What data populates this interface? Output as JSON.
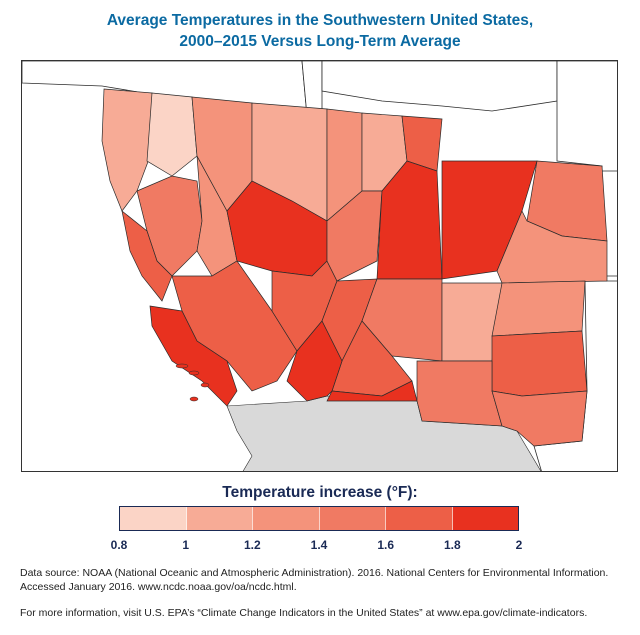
{
  "title": {
    "line1": "Average Temperatures in the Southwestern United States,",
    "line2": "2000–2015 Versus Long-Term Average"
  },
  "legend": {
    "title": "Temperature increase (°F):",
    "ticks": [
      "0.8",
      "1",
      "1.2",
      "1.4",
      "1.6",
      "1.8",
      "2"
    ],
    "colors": [
      "#fbd4c6",
      "#f7ab96",
      "#f4937b",
      "#f07a63",
      "#ed5f47",
      "#e8311f"
    ]
  },
  "colors": {
    "outside_states": "#ffffff",
    "mexico": "#d9d9d9",
    "ocean": "#ffffff",
    "border": "#2b2b2b"
  },
  "source": {
    "line1": "Data source: NOAA (National Oceanic and Atmospheric Administration). 2016. National Centers for Environmental Information.",
    "line2": "Accessed January 2016. www.ncdc.noaa.gov/oa/ncdc.html."
  },
  "more_info": "For more information, visit U.S. EPA’s “Climate Change Indicators in the United States” at www.epa.gov/climate-indicators."
}
